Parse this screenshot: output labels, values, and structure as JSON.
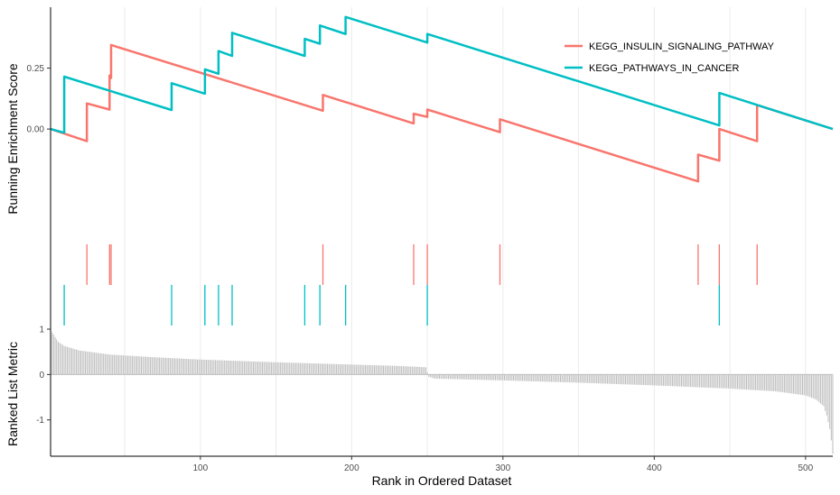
{
  "chart_data": {
    "type": "line",
    "xlabel": "Rank in Ordered Dataset",
    "xlim": [
      1,
      518
    ],
    "x_ticks": [
      "100",
      "200",
      "300",
      "400",
      "500"
    ],
    "panels": {
      "running_score": {
        "ylabel": "Running Enrichment Score",
        "ylim": [
          -0.44,
          0.5
        ],
        "y_ticks": [
          "0.00",
          "0.25"
        ],
        "grid": "vertical"
      },
      "ranked_metric": {
        "ylabel": "Ranked List Metric",
        "ylim": [
          -1.8,
          1.08
        ],
        "y_ticks": [
          "-1",
          "0",
          "1"
        ],
        "type": "bar"
      }
    },
    "legend": {
      "placement": "top-right"
    },
    "series": [
      {
        "name": "KEGG_INSULIN_SIGNALING_PATHWAY",
        "color": "#F8766D",
        "hits": [
          25,
          40,
          41,
          181,
          241,
          250,
          298,
          429,
          443,
          468
        ],
        "points": [
          [
            1,
            0.0
          ],
          [
            25,
            -0.05
          ],
          [
            25,
            0.105
          ],
          [
            40,
            0.08
          ],
          [
            40,
            0.22
          ],
          [
            41,
            0.21
          ],
          [
            41,
            0.345
          ],
          [
            181,
            0.075
          ],
          [
            181,
            0.14
          ],
          [
            241,
            0.023
          ],
          [
            241,
            0.063
          ],
          [
            250,
            0.05
          ],
          [
            250,
            0.08
          ],
          [
            298,
            -0.013
          ],
          [
            298,
            0.04
          ],
          [
            429,
            -0.215
          ],
          [
            429,
            -0.105
          ],
          [
            443,
            -0.13
          ],
          [
            443,
            0.0
          ],
          [
            468,
            -0.05
          ],
          [
            468,
            0.098
          ],
          [
            518,
            0.0
          ]
        ]
      },
      {
        "name": "KEGG_PATHWAYS_IN_CANCER",
        "color": "#00BFC4",
        "hits": [
          10,
          81,
          103,
          112,
          121,
          169,
          179,
          196,
          250,
          443
        ],
        "points": [
          [
            1,
            0.0
          ],
          [
            10,
            -0.015
          ],
          [
            10,
            0.215
          ],
          [
            81,
            0.078
          ],
          [
            81,
            0.188
          ],
          [
            103,
            0.145
          ],
          [
            103,
            0.245
          ],
          [
            112,
            0.227
          ],
          [
            112,
            0.32
          ],
          [
            121,
            0.3
          ],
          [
            121,
            0.395
          ],
          [
            169,
            0.3
          ],
          [
            169,
            0.37
          ],
          [
            179,
            0.35
          ],
          [
            179,
            0.425
          ],
          [
            196,
            0.39
          ],
          [
            196,
            0.46
          ],
          [
            250,
            0.355
          ],
          [
            250,
            0.39
          ],
          [
            443,
            0.015
          ],
          [
            443,
            0.148
          ],
          [
            518,
            0.0
          ]
        ]
      }
    ],
    "ranked_list_metric": {
      "n": 518,
      "breakpoints": [
        [
          1,
          0.98
        ],
        [
          2,
          0.93
        ],
        [
          3,
          0.88
        ],
        [
          6,
          0.72
        ],
        [
          10,
          0.63
        ],
        [
          20,
          0.53
        ],
        [
          40,
          0.44
        ],
        [
          70,
          0.38
        ],
        [
          100,
          0.33
        ],
        [
          150,
          0.27
        ],
        [
          200,
          0.22
        ],
        [
          230,
          0.19
        ],
        [
          249,
          0.16
        ],
        [
          251,
          -0.05
        ],
        [
          255,
          -0.09
        ],
        [
          300,
          -0.13
        ],
        [
          350,
          -0.18
        ],
        [
          400,
          -0.24
        ],
        [
          450,
          -0.31
        ],
        [
          480,
          -0.37
        ],
        [
          500,
          -0.46
        ],
        [
          507,
          -0.55
        ],
        [
          512,
          -0.7
        ],
        [
          514,
          -0.9
        ],
        [
          516,
          -1.2
        ],
        [
          517,
          -1.45
        ],
        [
          518,
          -1.75
        ]
      ]
    }
  }
}
